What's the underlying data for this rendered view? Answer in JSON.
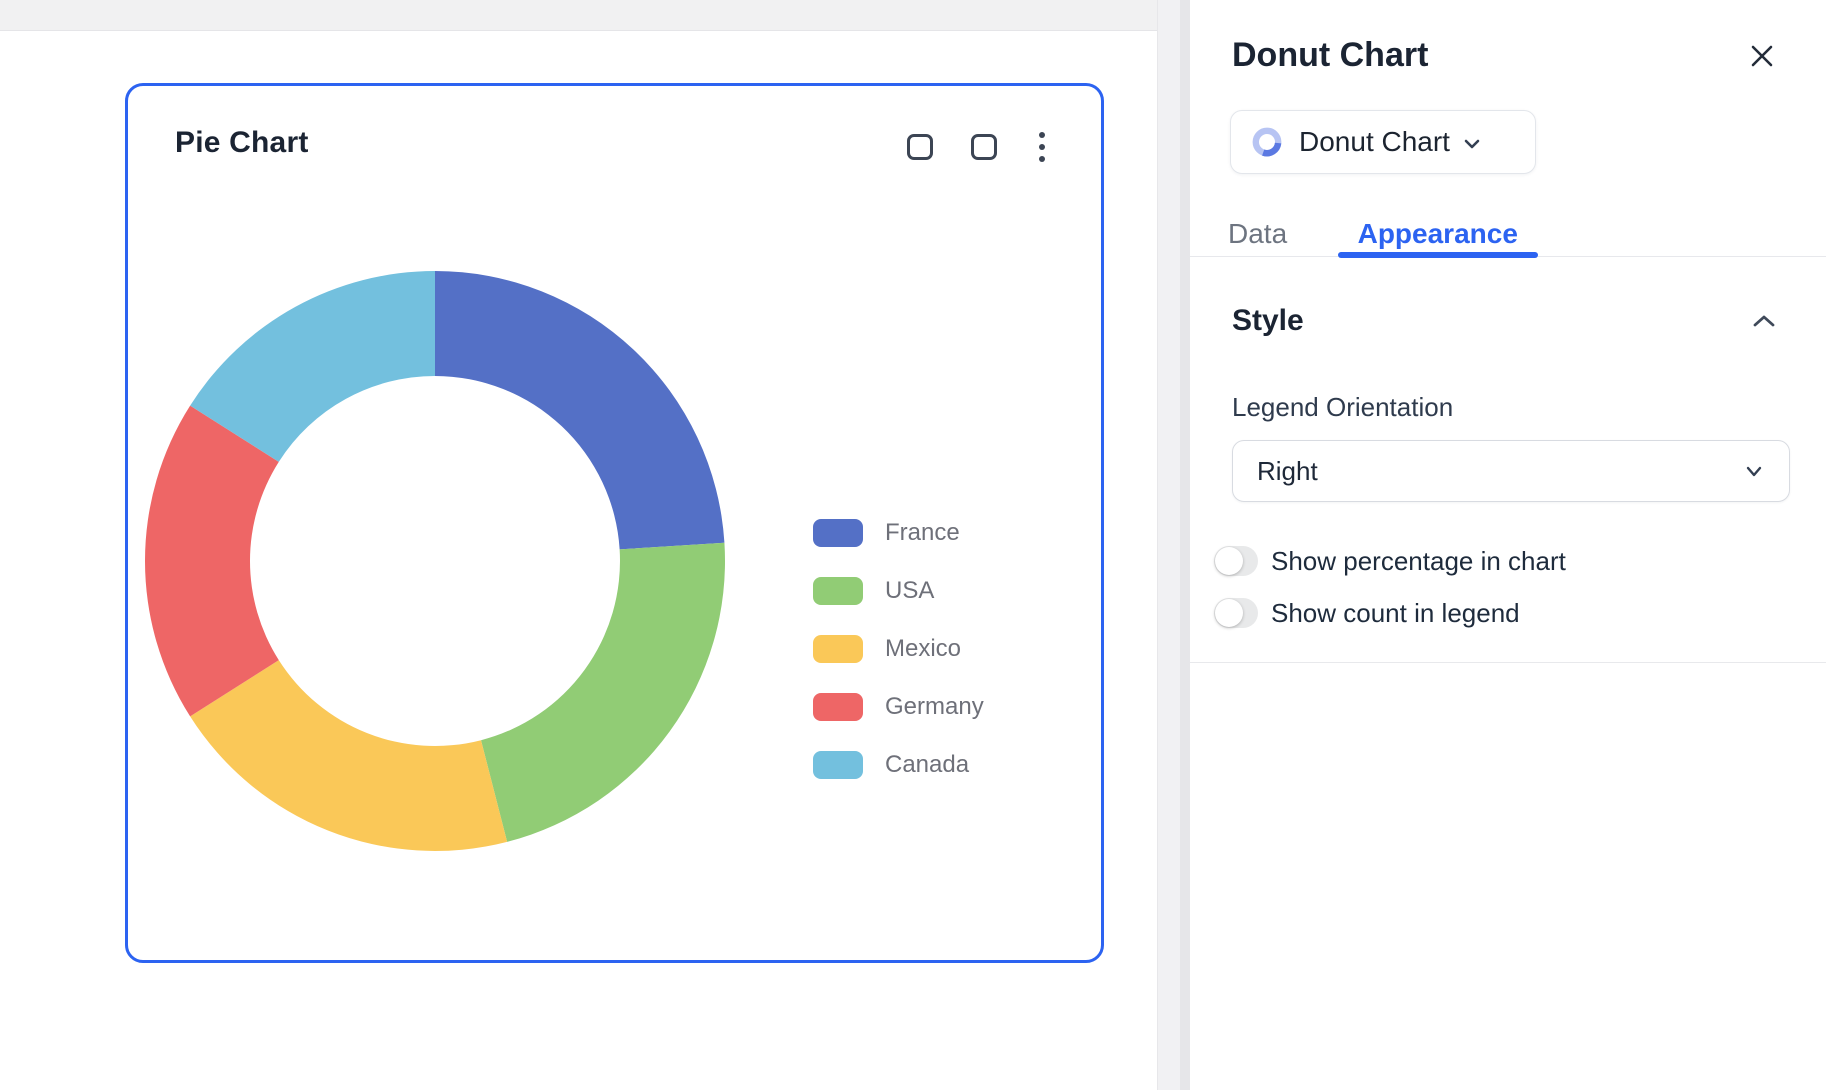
{
  "accent_color": "#2c63f1",
  "canvas": {
    "card": {
      "title": "Pie Chart",
      "actions": [
        "square-outline",
        "square-outline",
        "kebab-menu"
      ]
    }
  },
  "chart_data": {
    "type": "pie",
    "style": "donut",
    "title": "Pie Chart",
    "categories": [
      "France",
      "USA",
      "Mexico",
      "Germany",
      "Canada"
    ],
    "values": [
      24,
      22,
      20,
      18,
      16
    ],
    "unit": "percent-share",
    "colors": [
      "#5470c6",
      "#91cc75",
      "#fac858",
      "#ee6666",
      "#73c0de"
    ],
    "legend_position": "right",
    "labels_shown_in_chart": false,
    "counts_shown_in_legend": false
  },
  "panel": {
    "title": "Donut Chart",
    "type_selector": {
      "label": "Donut Chart",
      "icon": "donut-icon"
    },
    "tabs": [
      {
        "label": "Data",
        "active": false
      },
      {
        "label": "Appearance",
        "active": true
      }
    ],
    "style_section": {
      "heading": "Style",
      "collapsed": false,
      "legend_orientation": {
        "label": "Legend Orientation",
        "value": "Right"
      },
      "toggles": [
        {
          "label": "Show percentage in chart",
          "on": false
        },
        {
          "label": "Show count in legend",
          "on": false
        }
      ]
    }
  }
}
